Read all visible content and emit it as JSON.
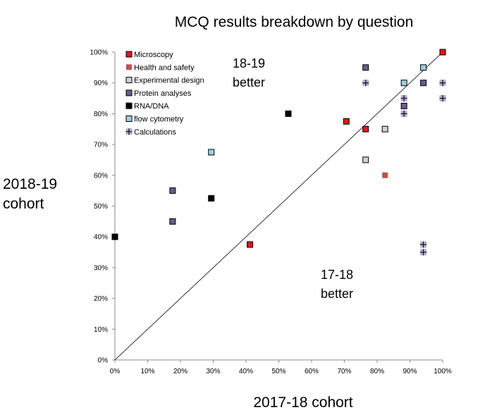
{
  "chart_data": {
    "type": "scatter",
    "title": "MCQ results breakdown by question",
    "xlabel": "2017-18 cohort",
    "ylabel_lines": [
      "2018-19",
      "cohort"
    ],
    "xlim": [
      0,
      100
    ],
    "ylim": [
      0,
      100
    ],
    "xticks": [
      "0%",
      "10%",
      "20%",
      "30%",
      "40%",
      "50%",
      "60%",
      "70%",
      "80%",
      "90%",
      "100%"
    ],
    "yticks": [
      "0%",
      "10%",
      "20%",
      "30%",
      "40%",
      "50%",
      "60%",
      "70%",
      "80%",
      "90%",
      "100%"
    ],
    "grid": false,
    "legend_position": "top-left",
    "reference_line": "y = x",
    "annotations": {
      "upper": [
        "18-19",
        "better"
      ],
      "lower": [
        "17-18",
        "better"
      ]
    },
    "series": [
      {
        "name": "Microscopy",
        "marker": "square",
        "color": "#e8131b",
        "points": [
          [
            41.2,
            37.5
          ],
          [
            70.6,
            77.5
          ],
          [
            76.5,
            75
          ],
          [
            100,
            100
          ]
        ]
      },
      {
        "name": "Health and safety",
        "marker": "square",
        "color": "#c0504d",
        "points": [
          [
            82.4,
            60
          ]
        ]
      },
      {
        "name": "Experimental design",
        "marker": "square",
        "color": "#d0d0d0",
        "points": [
          [
            76.5,
            65
          ],
          [
            82.4,
            75
          ]
        ]
      },
      {
        "name": "Protein analyses",
        "marker": "square",
        "color": "#6b5b8e",
        "points": [
          [
            17.6,
            55
          ],
          [
            17.6,
            45
          ],
          [
            76.5,
            95
          ],
          [
            88.2,
            82.5
          ],
          [
            94.1,
            90
          ]
        ]
      },
      {
        "name": "RNA/DNA",
        "marker": "square",
        "color": "#000000",
        "points": [
          [
            0,
            40
          ],
          [
            29.4,
            52.5
          ],
          [
            52.9,
            80
          ]
        ]
      },
      {
        "name": "flow cytometry",
        "marker": "square",
        "color": "#9dd0d8",
        "points": [
          [
            29.4,
            67.5
          ],
          [
            88.2,
            90
          ],
          [
            94.1,
            95
          ]
        ]
      },
      {
        "name": "Calculations",
        "marker": "plus",
        "color": "#b8b0cc",
        "points": [
          [
            76.5,
            90
          ],
          [
            88.2,
            85
          ],
          [
            88.2,
            80
          ],
          [
            100,
            90
          ],
          [
            100,
            85
          ],
          [
            94.1,
            37.5
          ],
          [
            94.1,
            35
          ]
        ]
      }
    ]
  }
}
